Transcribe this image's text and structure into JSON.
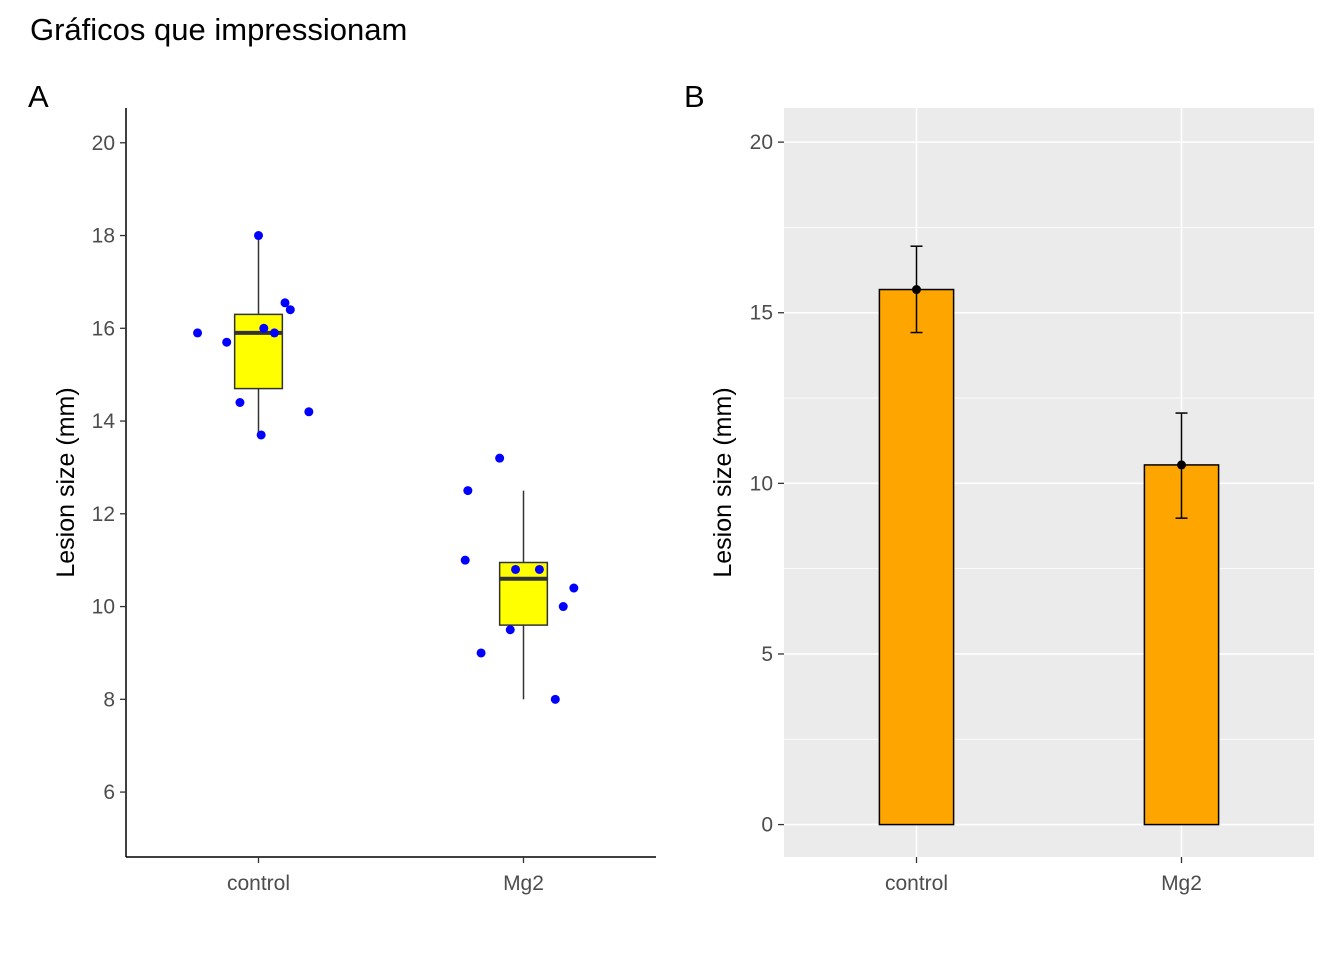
{
  "title": "Gráficos que impressionam",
  "colors": {
    "box_fill": "#ffff00",
    "points": "#0000ff",
    "bar_fill": "#ffa500",
    "panel_bg_b": "#ebebeb",
    "grid_b": "#ffffff",
    "text": "#000000",
    "tick_text": "#4d4d4d"
  },
  "chart_data": [
    {
      "tag": "A",
      "type": "boxplot",
      "xlabel": "",
      "ylabel": "Lesion size (mm)",
      "categories": [
        "control",
        "Mg2"
      ],
      "ylim": [
        4.6,
        20.75
      ],
      "yticks": [
        6,
        8,
        10,
        12,
        14,
        16,
        18,
        20
      ],
      "grid": false,
      "boxes": [
        {
          "category": "control",
          "min": 13.7,
          "q1": 14.7,
          "median": 15.9,
          "q3": 16.3,
          "max": 18.0
        },
        {
          "category": "Mg2",
          "min": 8.0,
          "q1": 9.6,
          "median": 10.6,
          "q3": 10.95,
          "max": 12.5
        }
      ],
      "points": [
        {
          "category": "control",
          "jitter": 0.0,
          "y": 18.0
        },
        {
          "category": "control",
          "jitter": 0.1,
          "y": 16.55
        },
        {
          "category": "control",
          "jitter": 0.12,
          "y": 16.4
        },
        {
          "category": "control",
          "jitter": 0.02,
          "y": 16.0
        },
        {
          "category": "control",
          "jitter": 0.06,
          "y": 15.9
        },
        {
          "category": "control",
          "jitter": -0.23,
          "y": 15.9
        },
        {
          "category": "control",
          "jitter": -0.12,
          "y": 15.7
        },
        {
          "category": "control",
          "jitter": -0.07,
          "y": 14.4
        },
        {
          "category": "control",
          "jitter": 0.19,
          "y": 14.2
        },
        {
          "category": "control",
          "jitter": 0.01,
          "y": 13.7
        },
        {
          "category": "Mg2",
          "jitter": -0.09,
          "y": 13.2
        },
        {
          "category": "Mg2",
          "jitter": -0.21,
          "y": 12.5
        },
        {
          "category": "Mg2",
          "jitter": -0.22,
          "y": 11.0
        },
        {
          "category": "Mg2",
          "jitter": -0.03,
          "y": 10.8
        },
        {
          "category": "Mg2",
          "jitter": 0.06,
          "y": 10.8
        },
        {
          "category": "Mg2",
          "jitter": 0.19,
          "y": 10.4
        },
        {
          "category": "Mg2",
          "jitter": 0.15,
          "y": 10.0
        },
        {
          "category": "Mg2",
          "jitter": -0.05,
          "y": 9.5
        },
        {
          "category": "Mg2",
          "jitter": -0.16,
          "y": 9.0
        },
        {
          "category": "Mg2",
          "jitter": 0.12,
          "y": 8.0
        }
      ]
    },
    {
      "tag": "B",
      "type": "bar",
      "xlabel": "",
      "ylabel": "Lesion size (mm)",
      "categories": [
        "control",
        "Mg2"
      ],
      "values": [
        15.68,
        10.54
      ],
      "error_low": [
        14.42,
        8.98
      ],
      "error_high": [
        16.95,
        12.06
      ],
      "ylim": [
        -0.95,
        21.0
      ],
      "yticks": [
        0,
        5,
        10,
        15,
        20
      ],
      "grid": true
    }
  ]
}
